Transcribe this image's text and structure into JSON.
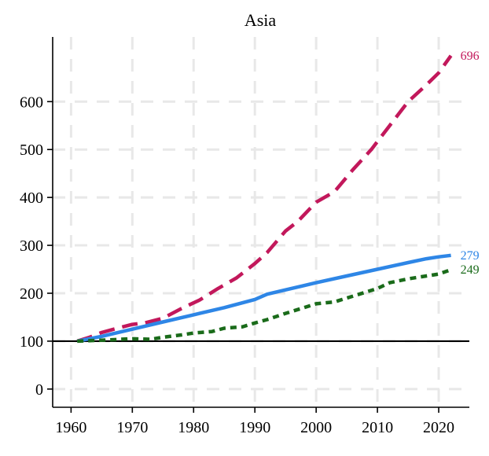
{
  "chart_data": {
    "type": "line",
    "title": "Asia",
    "xlabel": "",
    "ylabel": "",
    "xlim": [
      1957,
      2025
    ],
    "ylim": [
      -38,
      735
    ],
    "xticks": [
      1960,
      1970,
      1980,
      1990,
      2000,
      2010,
      2020
    ],
    "yticks": [
      0,
      100,
      200,
      300,
      400,
      500,
      600
    ],
    "grid": true,
    "reference_line": 100,
    "series": [
      {
        "color": "#c2185b",
        "dash": "long-dash",
        "end_label": "696",
        "x": [
          1961,
          1963,
          1965,
          1967,
          1970,
          1972,
          1975,
          1978,
          1981,
          1984,
          1987,
          1990,
          1992,
          1995,
          1997,
          2000,
          2003,
          2006,
          2009,
          2012,
          2015,
          2018,
          2020,
          2022
        ],
        "y": [
          100,
          108,
          118,
          125,
          135,
          138,
          148,
          168,
          186,
          210,
          232,
          262,
          285,
          330,
          350,
          390,
          412,
          458,
          500,
          550,
          600,
          635,
          660,
          696
        ]
      },
      {
        "color": "#2e86e6",
        "dash": "solid",
        "end_label": "279",
        "x": [
          1961,
          1965,
          1970,
          1975,
          1980,
          1985,
          1990,
          1992,
          1995,
          2000,
          2005,
          2010,
          2015,
          2018,
          2020,
          2022
        ],
        "y": [
          100,
          110,
          125,
          140,
          155,
          170,
          187,
          198,
          207,
          222,
          236,
          250,
          264,
          272,
          276,
          279
        ]
      },
      {
        "color": "#1a6b1a",
        "dash": "short-dash",
        "end_label": "249",
        "x": [
          1961,
          1965,
          1970,
          1973,
          1975,
          1978,
          1980,
          1983,
          1985,
          1988,
          1990,
          1992,
          1995,
          1998,
          2000,
          2003,
          2005,
          2008,
          2010,
          2012,
          2015,
          2018,
          2020,
          2022
        ],
        "y": [
          100,
          102,
          105,
          104,
          108,
          113,
          117,
          120,
          127,
          130,
          138,
          145,
          158,
          170,
          178,
          182,
          190,
          202,
          210,
          222,
          230,
          236,
          240,
          249
        ]
      }
    ]
  }
}
